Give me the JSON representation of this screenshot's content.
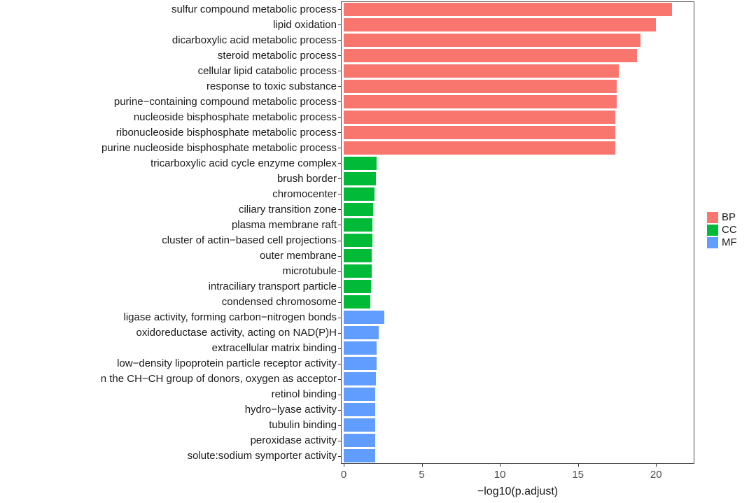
{
  "chart_data": {
    "type": "bar",
    "orientation": "horizontal",
    "title": "",
    "xlabel": "−log10(p.adjust)",
    "ylabel": "",
    "xlim": [
      0,
      22.4
    ],
    "x_ticks": [
      0,
      5,
      10,
      15,
      20
    ],
    "grid": false,
    "legend": {
      "position": "right",
      "entries": [
        {
          "label": "BP",
          "color": "#F8766D"
        },
        {
          "label": "CC",
          "color": "#00BA38"
        },
        {
          "label": "MF",
          "color": "#619CFF"
        }
      ]
    },
    "bars": [
      {
        "label": "sulfur compound metabolic process",
        "group": "BP",
        "value": 21.0
      },
      {
        "label": "lipid oxidation",
        "group": "BP",
        "value": 20.0
      },
      {
        "label": "dicarboxylic acid metabolic process",
        "group": "BP",
        "value": 19.0
      },
      {
        "label": "steroid metabolic process",
        "group": "BP",
        "value": 18.8
      },
      {
        "label": "cellular lipid catabolic process",
        "group": "BP",
        "value": 17.6
      },
      {
        "label": "response to toxic substance",
        "group": "BP",
        "value": 17.5
      },
      {
        "label": "purine−containing compound metabolic process",
        "group": "BP",
        "value": 17.5
      },
      {
        "label": "nucleoside bisphosphate metabolic process",
        "group": "BP",
        "value": 17.4
      },
      {
        "label": "ribonucleoside bisphosphate metabolic process",
        "group": "BP",
        "value": 17.4
      },
      {
        "label": "purine nucleoside bisphosphate metabolic process",
        "group": "BP",
        "value": 17.4
      },
      {
        "label": "tricarboxylic acid cycle enzyme complex",
        "group": "CC",
        "value": 2.1
      },
      {
        "label": "brush border",
        "group": "CC",
        "value": 2.05
      },
      {
        "label": "chromocenter",
        "group": "CC",
        "value": 1.95
      },
      {
        "label": "ciliary transition zone",
        "group": "CC",
        "value": 1.9
      },
      {
        "label": "plasma membrane raft",
        "group": "CC",
        "value": 1.85
      },
      {
        "label": "cluster of actin−based cell projections",
        "group": "CC",
        "value": 1.85
      },
      {
        "label": "outer membrane",
        "group": "CC",
        "value": 1.8
      },
      {
        "label": "microtubule",
        "group": "CC",
        "value": 1.8
      },
      {
        "label": "intraciliary transport particle",
        "group": "CC",
        "value": 1.75
      },
      {
        "label": "condensed chromosome",
        "group": "CC",
        "value": 1.7
      },
      {
        "label": "ligase activity, forming carbon−nitrogen bonds",
        "group": "MF",
        "value": 2.6
      },
      {
        "label": "oxidoreductase activity, acting on NAD(P)H",
        "group": "MF",
        "value": 2.25
      },
      {
        "label": "extracellular matrix binding",
        "group": "MF",
        "value": 2.1
      },
      {
        "label": "low−density lipoprotein particle receptor activity",
        "group": "MF",
        "value": 2.1
      },
      {
        "label": "n the CH−CH group of donors, oxygen as acceptor",
        "group": "MF",
        "value": 2.05
      },
      {
        "label": "retinol binding",
        "group": "MF",
        "value": 2.0
      },
      {
        "label": "hydro−lyase activity",
        "group": "MF",
        "value": 2.0
      },
      {
        "label": "tubulin binding",
        "group": "MF",
        "value": 2.0
      },
      {
        "label": "peroxidase activity",
        "group": "MF",
        "value": 2.0
      },
      {
        "label": "solute:sodium symporter activity",
        "group": "MF",
        "value": 2.0
      }
    ]
  }
}
